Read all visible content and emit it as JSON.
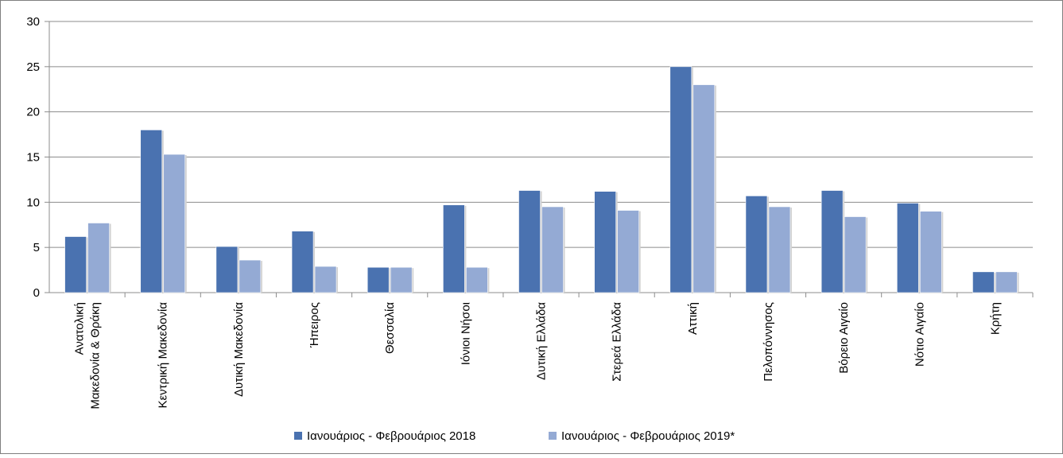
{
  "chart_data": {
    "type": "bar",
    "categories": [
      [
        "Ανατολική",
        "Μακεδονία & Θράκη"
      ],
      [
        "Κεντρική Μακεδονία"
      ],
      [
        "Δυτική Μακεδονία"
      ],
      [
        "Ήπειρος"
      ],
      [
        "Θεσσαλία"
      ],
      [
        "Ιόνιοι Νήσοι"
      ],
      [
        "Δυτική Ελλάδα"
      ],
      [
        "Στερεά Ελλάδα"
      ],
      [
        "Αττική"
      ],
      [
        "Πελοπόννησος"
      ],
      [
        "Βόρειο Αιγαίο"
      ],
      [
        "Νότιο Αιγαίο"
      ],
      [
        "Κρήτη"
      ]
    ],
    "series": [
      {
        "name": "Ιανουάριος - Φεβρουάριος 2018",
        "color": "#4a72b0",
        "values": [
          6.2,
          18,
          5.1,
          6.8,
          2.8,
          9.7,
          11.3,
          11.2,
          25,
          10.7,
          11.3,
          9.9,
          2.3
        ]
      },
      {
        "name": "Ιανουάριος - Φεβρουάριος 2019*",
        "color": "#94aad4",
        "values": [
          7.7,
          15.3,
          3.6,
          2.9,
          2.8,
          2.8,
          9.5,
          9.1,
          23,
          9.5,
          8.4,
          9.0,
          2.3
        ]
      }
    ],
    "ylim": [
      0,
      30
    ],
    "yticks": [
      0,
      5,
      10,
      15,
      20,
      25,
      30
    ],
    "grid": true,
    "legend_position": "bottom",
    "title": "",
    "xlabel": "",
    "ylabel": ""
  }
}
